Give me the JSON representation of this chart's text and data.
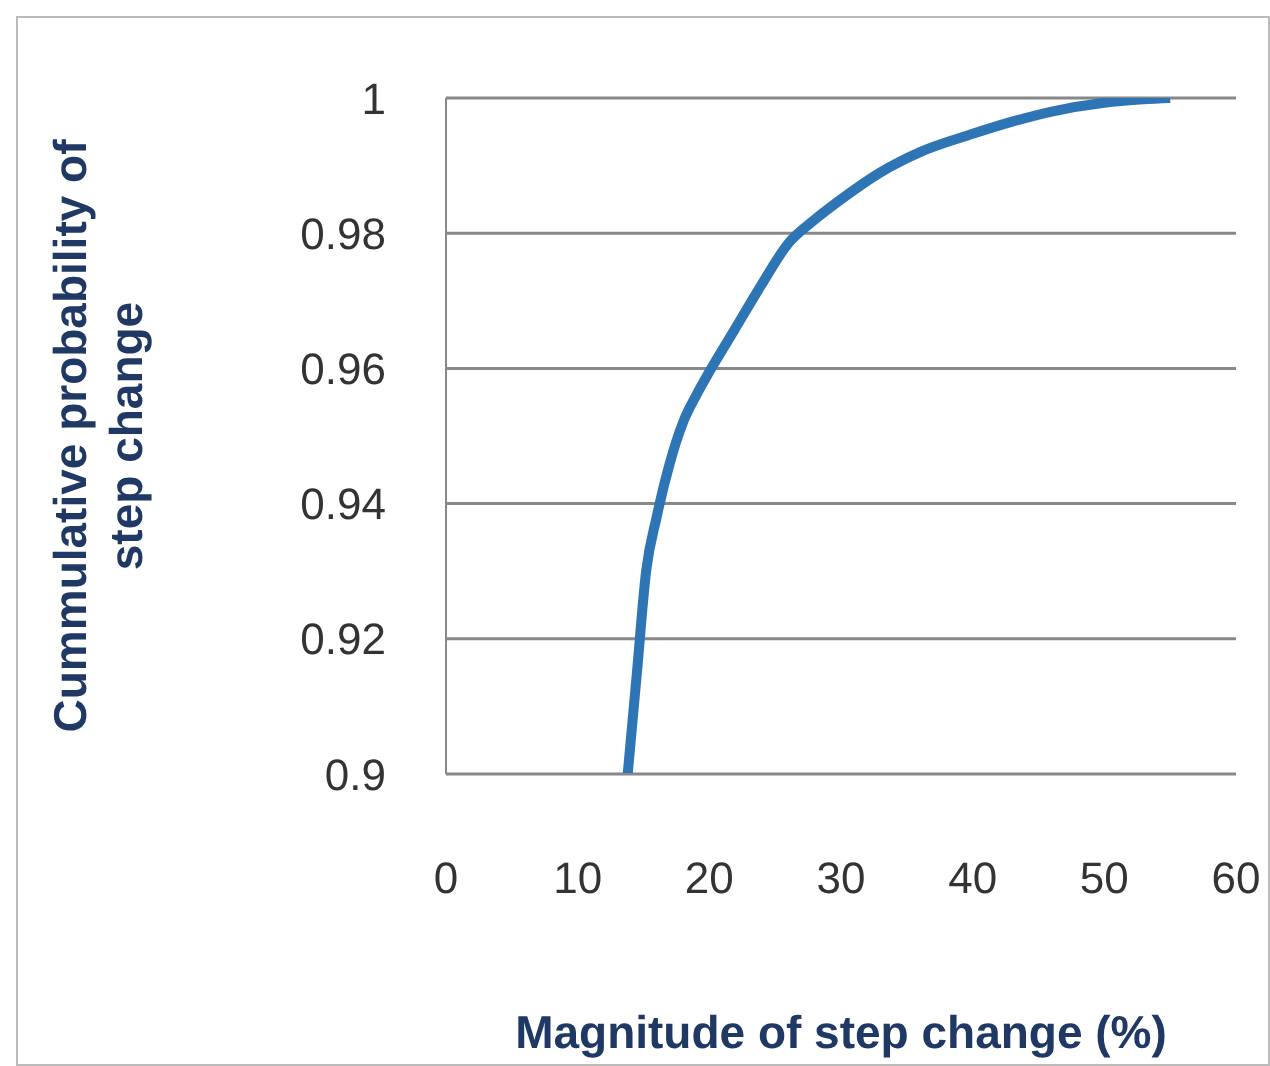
{
  "chart_data": {
    "type": "line",
    "xlabel": "Magnitude of step change (%)",
    "ylabel": "Cummulative probability of step change",
    "x": [
      13.8,
      14.5,
      15.2,
      16,
      17,
      18,
      19,
      20,
      22,
      24,
      26,
      28,
      30,
      33,
      36,
      40,
      43,
      46,
      50,
      53,
      55
    ],
    "values": [
      0.9,
      0.915,
      0.93,
      0.938,
      0.946,
      0.952,
      0.956,
      0.9595,
      0.966,
      0.9725,
      0.9785,
      0.982,
      0.985,
      0.989,
      0.992,
      0.9947,
      0.9965,
      0.998,
      0.9993,
      0.9998,
      1
    ],
    "color": "#2e75b6",
    "xlim": [
      0,
      60
    ],
    "xticks": [
      0,
      10,
      20,
      30,
      40,
      50,
      60
    ],
    "ylim": [
      0.9,
      1
    ],
    "yticks": [
      0.9,
      0.92,
      0.94,
      0.96,
      0.98,
      1
    ],
    "grid": "y",
    "marker": "none",
    "line_style": "solid"
  }
}
